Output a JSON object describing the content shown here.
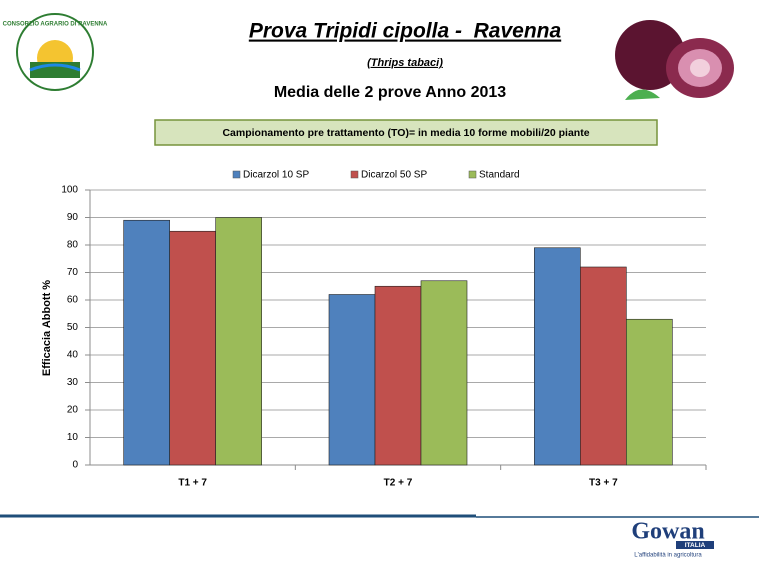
{
  "header_logo": "CONSORZIO AGRARIO DI RAVENNA",
  "footer_logo": {
    "name": "Gowan",
    "country": "ITALIA",
    "tagline": "L'affidabilità in agricoltura"
  },
  "chart_data": {
    "type": "bar",
    "title": "Prova Tripidi cipolla -  Ravenna",
    "subtitle": "(Thrips tabaci)",
    "heading": "Media delle 2 prove Anno 2013",
    "annotation": "Campionamento pre trattamento (TO)= in media 10 forme mobili/20 piante",
    "y_label": "Efficacia Abbott %",
    "categories": [
      "T1 + 7",
      "T2 + 7",
      "T3 + 7"
    ],
    "series": [
      {
        "name": "Dicarzol 10 SP",
        "color": "#4f81bd",
        "values": [
          89,
          62,
          79
        ]
      },
      {
        "name": "Dicarzol 50 SP",
        "color": "#c0504d",
        "values": [
          85,
          65,
          72
        ]
      },
      {
        "name": "Standard",
        "color": "#9bbb59",
        "values": [
          90,
          67,
          53
        ]
      }
    ],
    "ylim": [
      0,
      100
    ],
    "yticks": [
      0,
      10,
      20,
      30,
      40,
      50,
      60,
      70,
      80,
      90,
      100
    ],
    "grid": true,
    "legend": "top"
  }
}
